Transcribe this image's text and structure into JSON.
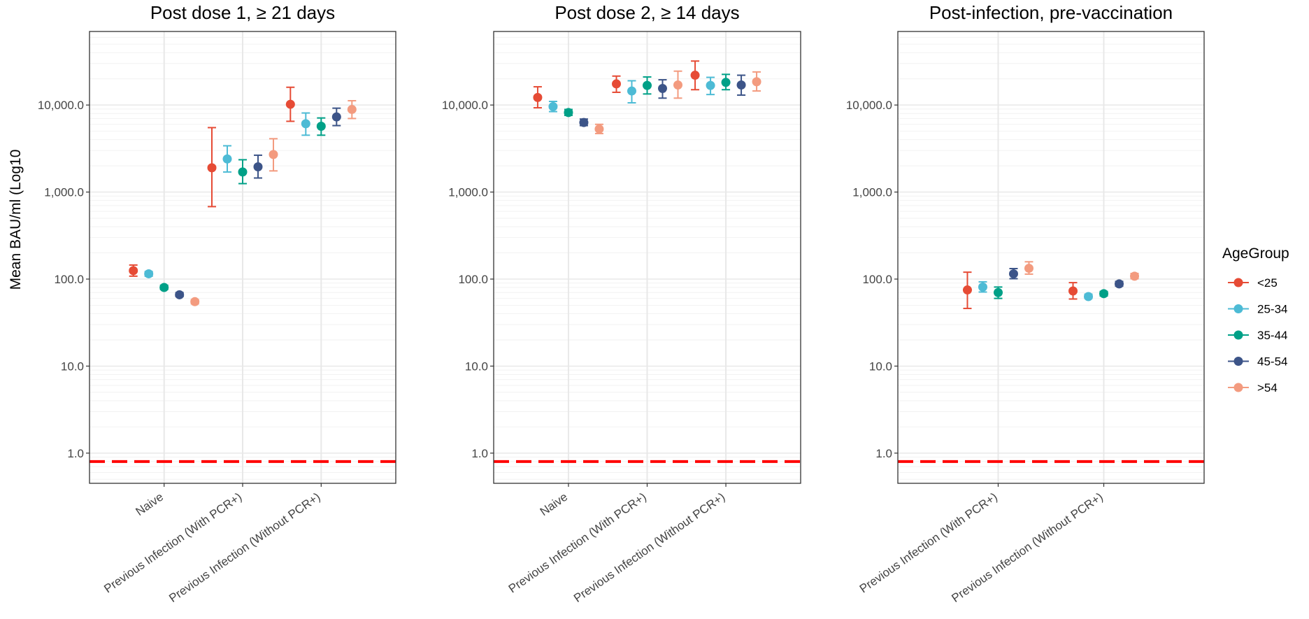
{
  "chart_data": {
    "type": "scatter",
    "ylabel": "Mean BAU/ml (Log10",
    "yscale": "log10",
    "ylim": [
      0.45,
      70000
    ],
    "yticks": [
      1,
      10,
      100,
      1000,
      10000
    ],
    "ytick_labels": [
      "1.0",
      "10.0",
      "100.0",
      "1,000.0",
      "10,000.0"
    ],
    "grid": true,
    "legend": {
      "title": "AgeGroup",
      "position": "right",
      "entries": [
        {
          "name": "<25",
          "color": "#E64B35"
        },
        {
          "name": "25-34",
          "color": "#4DBBD5"
        },
        {
          "name": "35-44",
          "color": "#00A087"
        },
        {
          "name": "45-54",
          "color": "#3C5488"
        },
        {
          "name": ">54",
          "color": "#F39B7F"
        }
      ]
    },
    "reference_line": {
      "y": 0.8,
      "color": "#FF0000",
      "style": "dashed"
    },
    "panels": [
      {
        "title": "Post dose 1, ≥ 21 days",
        "categories": [
          "Naive",
          "Previous Infection (With PCR+)",
          "Previous Infection (Without PCR+)"
        ],
        "series": [
          {
            "name": "<25",
            "values": [
              125,
              1900,
              10200
            ],
            "lower": [
              108,
              680,
              6500
            ],
            "upper": [
              145,
              5500,
              16000
            ]
          },
          {
            "name": "25-34",
            "values": [
              115,
              2400,
              6100
            ],
            "lower": [
              108,
              1700,
              4500
            ],
            "upper": [
              122,
              3400,
              8100
            ]
          },
          {
            "name": "35-44",
            "values": [
              80,
              1700,
              5700
            ],
            "lower": [
              76,
              1250,
              4500
            ],
            "upper": [
              85,
              2350,
              7100
            ]
          },
          {
            "name": "45-54",
            "values": [
              66,
              1950,
              7300
            ],
            "lower": [
              63,
              1450,
              5800
            ],
            "upper": [
              70,
              2650,
              9200
            ]
          },
          {
            "name": ">54",
            "values": [
              55,
              2700,
              8900
            ],
            "lower": [
              52,
              1750,
              7000
            ],
            "upper": [
              58,
              4100,
              11200
            ]
          }
        ]
      },
      {
        "title": "Post dose 2, ≥ 14 days",
        "categories": [
          "Naive",
          "Previous Infection (With PCR+)",
          "Previous Infection (Without PCR+)"
        ],
        "series": [
          {
            "name": "<25",
            "values": [
              12200,
              17500,
              22000
            ],
            "lower": [
              9300,
              14000,
              15000
            ],
            "upper": [
              16200,
              21500,
              32000
            ]
          },
          {
            "name": "25-34",
            "values": [
              9600,
              14500,
              16800
            ],
            "lower": [
              8400,
              10600,
              13200
            ],
            "upper": [
              11000,
              19000,
              20800
            ]
          },
          {
            "name": "35-44",
            "values": [
              8200,
              16800,
              18200
            ],
            "lower": [
              7600,
              13400,
              15000
            ],
            "upper": [
              8900,
              21000,
              22500
            ]
          },
          {
            "name": "45-54",
            "values": [
              6300,
              15500,
              17000
            ],
            "lower": [
              5800,
              12000,
              13000
            ],
            "upper": [
              6900,
              19500,
              22000
            ]
          },
          {
            "name": ">54",
            "values": [
              5300,
              17000,
              18500
            ],
            "lower": [
              4700,
              12000,
              14500
            ],
            "upper": [
              6000,
              24500,
              24000
            ]
          }
        ]
      },
      {
        "title": "Post-infection, pre-vaccination",
        "categories": [
          "Previous Infection (With PCR+)",
          "Previous Infection (Without PCR+)"
        ],
        "series": [
          {
            "name": "<25",
            "values": [
              75,
              73
            ],
            "lower": [
              46,
              59
            ],
            "upper": [
              120,
              91
            ]
          },
          {
            "name": "25-34",
            "values": [
              81,
              63
            ],
            "lower": [
              71,
              60
            ],
            "upper": [
              93,
              67
            ]
          },
          {
            "name": "35-44",
            "values": [
              70,
              68
            ],
            "lower": [
              60,
              64
            ],
            "upper": [
              81,
              72
            ]
          },
          {
            "name": "45-54",
            "values": [
              115,
              88
            ],
            "lower": [
              101,
              83
            ],
            "upper": [
              132,
              94
            ]
          },
          {
            "name": ">54",
            "values": [
              133,
              108
            ],
            "lower": [
              114,
              101
            ],
            "upper": [
              158,
              116
            ]
          }
        ]
      }
    ]
  }
}
